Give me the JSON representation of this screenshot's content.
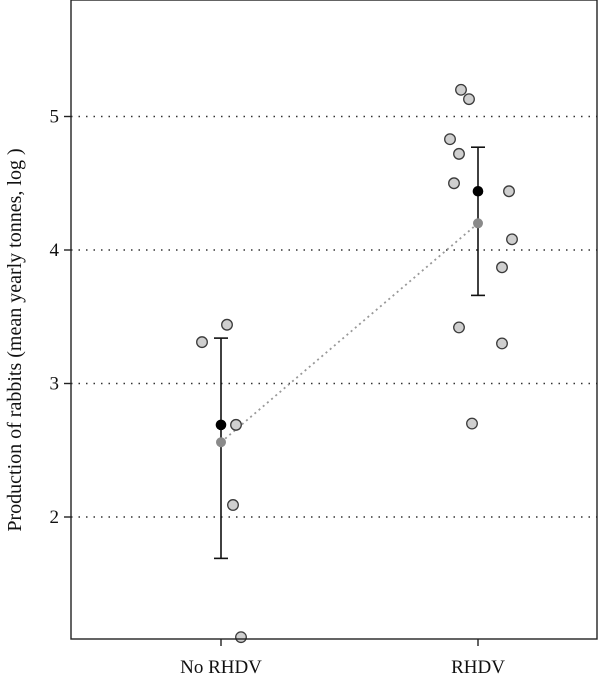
{
  "chart_data": {
    "type": "scatter",
    "ylabel": "Production of rabbits (mean yearly tonnes, log )",
    "ylim": [
      1.1,
      5.8
    ],
    "yticks": [
      2,
      3,
      4,
      5
    ],
    "grid": "horizontal dotted",
    "categories": [
      "No RHDV",
      "RHDV"
    ],
    "points": [
      {
        "category": "No RHDV",
        "values": [
          3.31,
          3.44,
          2.69,
          2.09,
          1.1
        ]
      },
      {
        "category": "RHDV",
        "values": [
          5.2,
          5.13,
          4.83,
          4.72,
          4.5,
          4.44,
          4.08,
          3.87,
          3.42,
          3.3,
          2.7
        ]
      }
    ],
    "observed_mean": [
      2.69,
      4.44
    ],
    "error_bars": [
      {
        "category": "No RHDV",
        "low": 1.69,
        "high": 3.34
      },
      {
        "category": "RHDV",
        "low": 3.66,
        "high": 4.77
      }
    ],
    "predicted_mean": [
      2.56,
      4.2
    ],
    "colors": {
      "observation": "#cfcfcf",
      "observed_mean": "#000000",
      "predicted_mean": "#8a8a8a",
      "connector": "#999999"
    }
  }
}
